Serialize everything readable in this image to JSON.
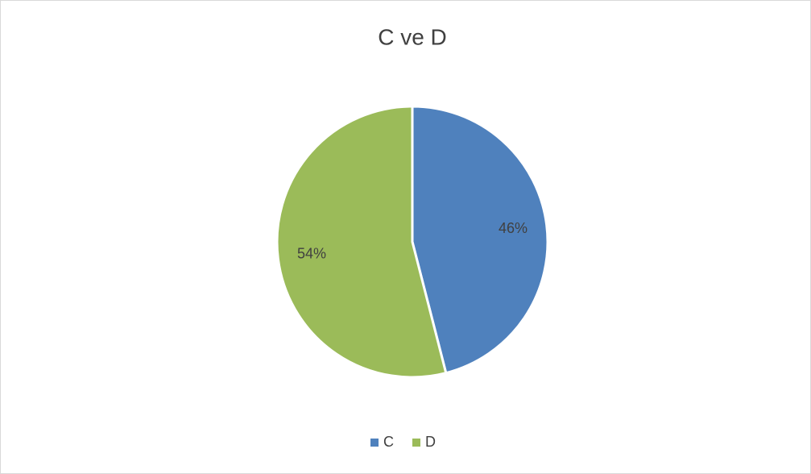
{
  "chart_data": {
    "type": "pie",
    "title": "C ve D",
    "categories": [
      "C",
      "D"
    ],
    "values": [
      46,
      54
    ],
    "value_labels": [
      "46%",
      "54%"
    ],
    "colors": [
      "#4f81bd",
      "#9bbb59"
    ],
    "legend": "bottom"
  }
}
